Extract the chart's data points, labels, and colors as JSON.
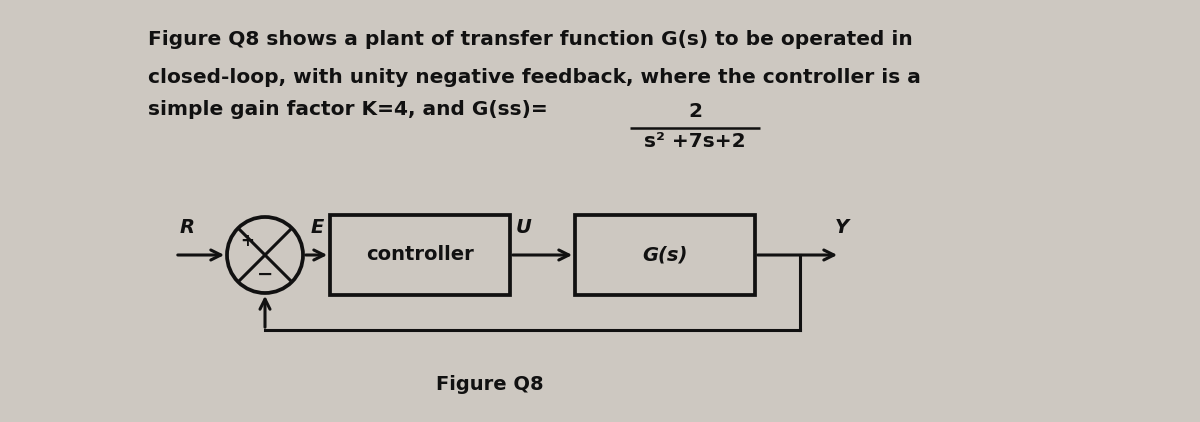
{
  "bg_color": "#cdc8c1",
  "text_color": "#111111",
  "line_color": "#111111",
  "title_line1": "Figure Q8 shows a plant of transfer function G(s) to be operated in",
  "title_line2": "closed-loop, with unity negative feedback, where the controller is a",
  "title_line3": "simple gain factor K=4, and G(",
  "title_line3b": "s",
  "title_line3c": ")=",
  "numerator": "2",
  "denominator": "s² +7s+2",
  "figure_label": "Figure Q8",
  "R_label": "R",
  "E_label": "E",
  "U_label": "U",
  "Y_label": "Y",
  "plus_label": "+",
  "minus_label": "−",
  "controller_label": "controller",
  "Gs_label": "G(s)",
  "font_size_title": 14.5,
  "font_size_labels": 14,
  "font_size_block": 14,
  "font_size_figure": 14
}
